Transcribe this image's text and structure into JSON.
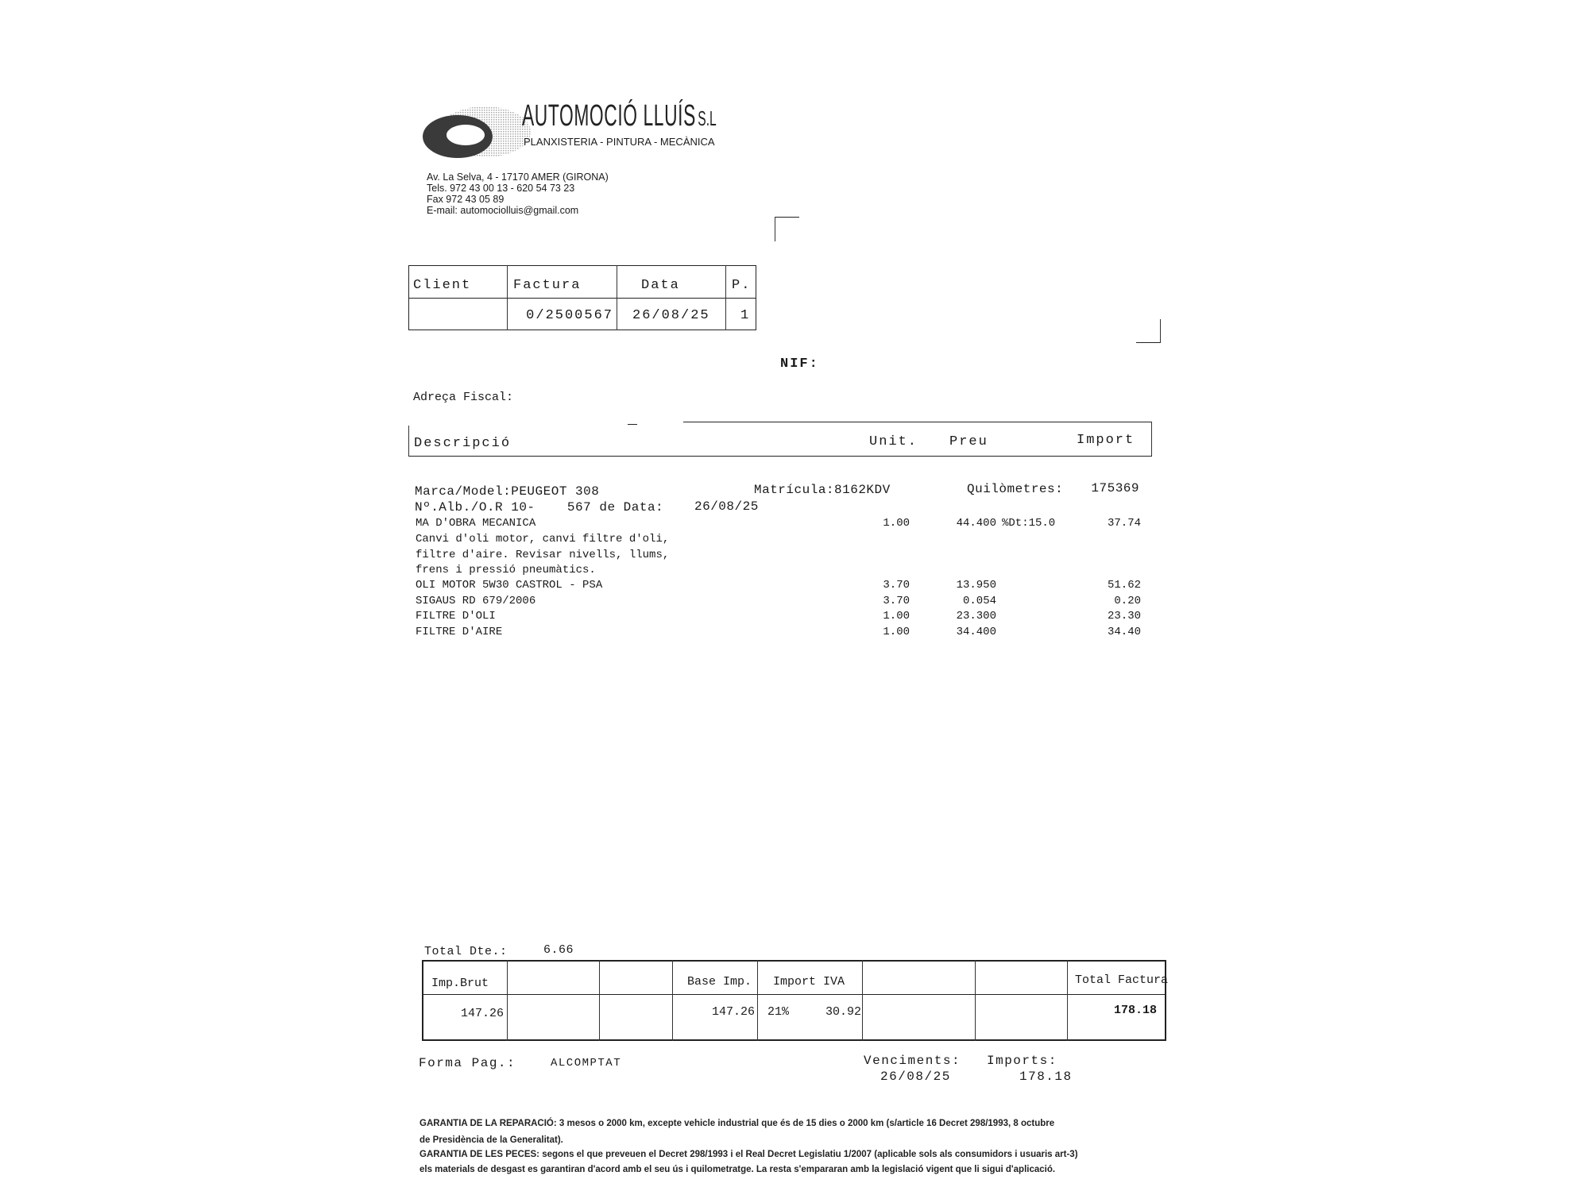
{
  "company": {
    "name": "AUTOMOCIÓ LLUÍS",
    "suffix": "S.L",
    "tagline": "PLANXISTERIA - PINTURA - MECÀNICA",
    "address": "Av. La Selva, 4 - 17170 AMER (GIRONA)",
    "phones": "Tels. 972 43 00 13 - 620 54 73 23",
    "fax": "Fax 972 43 05 89",
    "email": "E-mail: automociolluis@gmail.com"
  },
  "header_box": {
    "labels": {
      "client": "Client",
      "factura": "Factura",
      "data": "Data",
      "page": "P."
    },
    "values": {
      "client": "",
      "factura": "0/2500567",
      "data": "26/08/25",
      "page": "1"
    }
  },
  "nif_label": "NIF:",
  "address_label": "Adreça Fiscal:",
  "columns": {
    "description": "Descripció",
    "unit": "Unit.",
    "price": "Preu",
    "amount": "Import"
  },
  "vehicle": {
    "model": "Marca/Model:PEUGEOT 308",
    "plate": "Matrícula:8162KDV",
    "km_label": "Quilòmetres:",
    "km": "175369",
    "order": "Nº.Alb./O.R 10-    567 de Data:",
    "order_date": "26/08/25"
  },
  "lines": [
    {
      "desc": "MA D'OBRA MECANICA",
      "unit": "1.00",
      "price": "44.400",
      "discount": "%Dt:15.0",
      "amount": "37.74"
    },
    {
      "desc": "Canvi d'oli motor, canvi filtre d'oli,",
      "unit": "",
      "price": "",
      "discount": "",
      "amount": ""
    },
    {
      "desc": "filtre d'aire. Revisar nivells, llums,",
      "unit": "",
      "price": "",
      "discount": "",
      "amount": ""
    },
    {
      "desc": "frens i pressió pneumàtics.",
      "unit": "",
      "price": "",
      "discount": "",
      "amount": ""
    },
    {
      "desc": "OLI MOTOR 5W30 CASTROL - PSA",
      "unit": "3.70",
      "price": "13.950",
      "discount": "",
      "amount": "51.62"
    },
    {
      "desc": "SIGAUS RD 679/2006",
      "unit": "3.70",
      "price": "0.054",
      "discount": "",
      "amount": "0.20"
    },
    {
      "desc": "FILTRE D'OLI",
      "unit": "1.00",
      "price": "23.300",
      "discount": "",
      "amount": "23.30"
    },
    {
      "desc": "FILTRE D'AIRE",
      "unit": "1.00",
      "price": "34.400",
      "discount": "",
      "amount": "34.40"
    }
  ],
  "totals": {
    "discount_label": "Total Dte.:",
    "discount": "6.66",
    "gross_label": "Imp.Brut",
    "gross": "147.26",
    "base_label": "Base Imp.",
    "base": "147.26",
    "vat_label": "Import IVA",
    "vat_rate": "21%",
    "vat": "30.92",
    "total_label": "Total Factura",
    "total": "178.18"
  },
  "payment": {
    "method_label": "Forma Pag.:",
    "method": "ALCOMPTAT",
    "due_label": "Venciments:",
    "due_date": "26/08/25",
    "amounts_label": "Imports:",
    "amount": "178.18"
  },
  "footer": [
    "GARANTIA DE LA REPARACIÓ: 3 mesos o 2000 km, excepte vehicle industrial que és de 15 dies o 2000 km (s/article 16 Decret 298/1993, 8 octubre",
    "de Presidència de la Generalitat).",
    "GARANTIA DE LES PECES: segons el que preveuen el Decret 298/1993 i el Real Decret Legislatiu 1/2007 (aplicable sols als consumidors i usuaris art-3)",
    "els materials de desgast es garantiran d'acord amb el seu ús i quilometratge. La resta s'empararan amb la legislació vigent que li sigui d'aplicació."
  ]
}
